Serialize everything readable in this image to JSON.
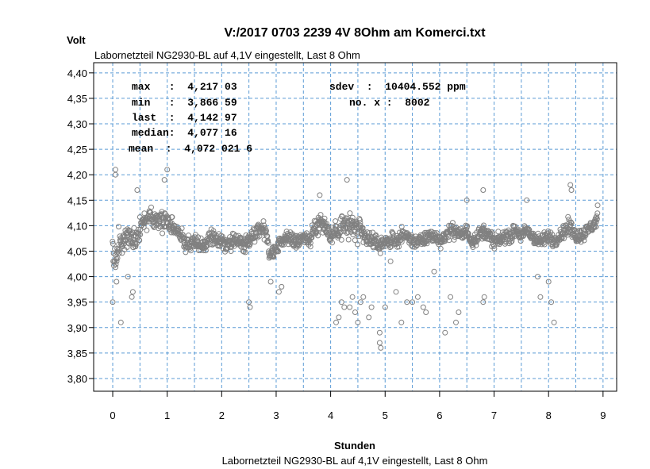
{
  "chart_data": {
    "type": "scatter",
    "title": "V:/2017 0703 2239 4V 8Ohm am Komerci.txt",
    "subtitle_top": "Labornetzteil NG2930-BL auf 4,1V eingestellt, Last 8 Ohm",
    "subtitle_bottom": "Labornetzteil NG2930-BL auf 4,1V eingestellt, Last 8 Ohm",
    "xlabel": "Stunden",
    "ylabel": "Volt",
    "xlim": [
      -0.35,
      9.25
    ],
    "ylim": [
      3.775,
      4.42
    ],
    "x_ticks": [
      0,
      1,
      2,
      3,
      4,
      5,
      6,
      7,
      8,
      9
    ],
    "x_tick_labels": [
      "0",
      "1",
      "2",
      "3",
      "4",
      "5",
      "6",
      "7",
      "8",
      "9"
    ],
    "y_ticks": [
      3.8,
      3.85,
      3.9,
      3.95,
      4.0,
      4.05,
      4.1,
      4.15,
      4.2,
      4.25,
      4.3,
      4.35,
      4.4
    ],
    "y_tick_labels": [
      "3,80",
      "3,85",
      "3,90",
      "3,95",
      "4,00",
      "4,05",
      "4,10",
      "4,15",
      "4,20",
      "4,25",
      "4,30",
      "4,35",
      "4,40"
    ],
    "x_grid": [
      -0.5,
      0,
      0.5,
      1,
      1.5,
      2,
      2.5,
      3,
      3.5,
      4,
      4.5,
      5,
      5.5,
      6,
      6.5,
      7,
      7.5,
      8,
      8.5,
      9
    ],
    "y_grid": [
      3.8,
      3.85,
      3.9,
      3.95,
      4.0,
      4.05,
      4.1,
      4.15,
      4.2,
      4.25,
      4.3,
      4.35,
      4.4
    ],
    "grid": true,
    "colors": {
      "points": "#808080",
      "grid": "#5b9bd5",
      "frame": "#000000"
    },
    "stats": {
      "max": "max   :  4,217 03",
      "min": "min   :  3,866 59",
      "last": "last  :  4,142 97",
      "median": "median:  4,077 16",
      "mean": "mean  :  4,072 021 6",
      "sdev": "sdev  :  10404.552 ppm",
      "no_x": "no. x :  8002"
    },
    "series_profile": {
      "name": "",
      "x": [
        0.0,
        0.05,
        0.1,
        0.2,
        0.3,
        0.4,
        0.5,
        0.6,
        0.7,
        0.8,
        0.9,
        1.0,
        1.1,
        1.2,
        1.3,
        1.4,
        1.5,
        1.6,
        1.7,
        1.8,
        1.9,
        2.0,
        2.1,
        2.2,
        2.3,
        2.4,
        2.5,
        2.6,
        2.7,
        2.8,
        2.9,
        3.0,
        3.1,
        3.2,
        3.3,
        3.4,
        3.5,
        3.6,
        3.7,
        3.8,
        3.9,
        4.0,
        4.1,
        4.2,
        4.3,
        4.4,
        4.5,
        4.6,
        4.7,
        4.8,
        4.9,
        5.0,
        5.1,
        5.2,
        5.3,
        5.4,
        5.5,
        5.6,
        5.7,
        5.8,
        5.9,
        6.0,
        6.1,
        6.2,
        6.3,
        6.4,
        6.5,
        6.6,
        6.7,
        6.8,
        6.9,
        7.0,
        7.1,
        7.2,
        7.3,
        7.4,
        7.5,
        7.6,
        7.7,
        7.8,
        7.9,
        8.0,
        8.1,
        8.2,
        8.3,
        8.4,
        8.5,
        8.6,
        8.7,
        8.8,
        8.9
      ],
      "y": [
        4.05,
        4.03,
        4.06,
        4.07,
        4.08,
        4.07,
        4.09,
        4.11,
        4.12,
        4.11,
        4.11,
        4.11,
        4.1,
        4.09,
        4.07,
        4.06,
        4.07,
        4.06,
        4.06,
        4.08,
        4.07,
        4.07,
        4.06,
        4.07,
        4.07,
        4.06,
        4.07,
        4.08,
        4.1,
        4.09,
        4.04,
        4.06,
        4.07,
        4.08,
        4.07,
        4.07,
        4.08,
        4.07,
        4.09,
        4.11,
        4.1,
        4.08,
        4.09,
        4.1,
        4.1,
        4.1,
        4.09,
        4.08,
        4.07,
        4.07,
        4.06,
        4.07,
        4.07,
        4.07,
        4.08,
        4.08,
        4.07,
        4.07,
        4.07,
        4.08,
        4.08,
        4.07,
        4.08,
        4.09,
        4.09,
        4.08,
        4.09,
        4.07,
        4.08,
        4.09,
        4.08,
        4.07,
        4.07,
        4.08,
        4.08,
        4.09,
        4.08,
        4.09,
        4.08,
        4.07,
        4.07,
        4.08,
        4.07,
        4.08,
        4.09,
        4.1,
        4.08,
        4.08,
        4.09,
        4.1,
        4.11
      ],
      "spread": [
        0.03,
        0.05,
        0.05,
        0.03,
        0.04,
        0.03,
        0.03,
        0.03,
        0.03,
        0.03,
        0.03,
        0.03,
        0.02,
        0.02,
        0.02,
        0.03,
        0.02,
        0.02,
        0.02,
        0.02,
        0.02,
        0.02,
        0.02,
        0.02,
        0.02,
        0.02,
        0.03,
        0.02,
        0.03,
        0.03,
        0.02,
        0.02,
        0.02,
        0.02,
        0.02,
        0.02,
        0.02,
        0.02,
        0.03,
        0.03,
        0.02,
        0.03,
        0.03,
        0.04,
        0.04,
        0.04,
        0.04,
        0.03,
        0.02,
        0.02,
        0.02,
        0.02,
        0.02,
        0.02,
        0.02,
        0.02,
        0.02,
        0.02,
        0.02,
        0.02,
        0.02,
        0.02,
        0.02,
        0.02,
        0.02,
        0.02,
        0.02,
        0.02,
        0.02,
        0.02,
        0.02,
        0.02,
        0.02,
        0.02,
        0.02,
        0.02,
        0.02,
        0.02,
        0.02,
        0.02,
        0.02,
        0.02,
        0.02,
        0.02,
        0.02,
        0.03,
        0.02,
        0.02,
        0.02,
        0.02,
        0.02
      ]
    },
    "outliers": [
      [
        0.0,
        3.95
      ],
      [
        0.07,
        3.99
      ],
      [
        0.15,
        3.91
      ],
      [
        0.28,
        4.0
      ],
      [
        0.35,
        3.96
      ],
      [
        0.37,
        3.97
      ],
      [
        0.45,
        4.17
      ],
      [
        0.95,
        4.19
      ],
      [
        1.0,
        4.21
      ],
      [
        0.05,
        4.21
      ],
      [
        0.05,
        4.2
      ],
      [
        2.5,
        3.95
      ],
      [
        2.52,
        3.94
      ],
      [
        2.9,
        3.99
      ],
      [
        3.05,
        3.97
      ],
      [
        3.1,
        3.98
      ],
      [
        3.8,
        4.16
      ],
      [
        4.1,
        3.91
      ],
      [
        4.15,
        3.92
      ],
      [
        4.2,
        3.95
      ],
      [
        4.25,
        3.94
      ],
      [
        4.3,
        4.19
      ],
      [
        4.35,
        3.94
      ],
      [
        4.4,
        3.96
      ],
      [
        4.45,
        3.93
      ],
      [
        4.5,
        3.91
      ],
      [
        4.55,
        3.95
      ],
      [
        4.6,
        3.96
      ],
      [
        4.7,
        3.92
      ],
      [
        4.75,
        3.94
      ],
      [
        4.9,
        3.87
      ],
      [
        4.92,
        3.86
      ],
      [
        4.9,
        3.89
      ],
      [
        5.0,
        3.94
      ],
      [
        5.1,
        4.03
      ],
      [
        5.2,
        3.97
      ],
      [
        5.3,
        3.91
      ],
      [
        5.4,
        3.95
      ],
      [
        5.5,
        3.95
      ],
      [
        5.6,
        3.96
      ],
      [
        5.7,
        3.94
      ],
      [
        5.75,
        3.93
      ],
      [
        5.9,
        4.01
      ],
      [
        6.1,
        3.89
      ],
      [
        6.2,
        3.96
      ],
      [
        6.3,
        3.91
      ],
      [
        6.35,
        3.93
      ],
      [
        6.5,
        4.15
      ],
      [
        6.8,
        3.95
      ],
      [
        6.82,
        3.96
      ],
      [
        6.8,
        4.17
      ],
      [
        7.0,
        4.06
      ],
      [
        7.6,
        4.15
      ],
      [
        7.8,
        4.0
      ],
      [
        7.85,
        3.96
      ],
      [
        8.0,
        3.99
      ],
      [
        8.05,
        3.95
      ],
      [
        8.1,
        3.91
      ],
      [
        8.4,
        4.18
      ],
      [
        8.42,
        4.17
      ],
      [
        8.9,
        4.14
      ]
    ]
  }
}
